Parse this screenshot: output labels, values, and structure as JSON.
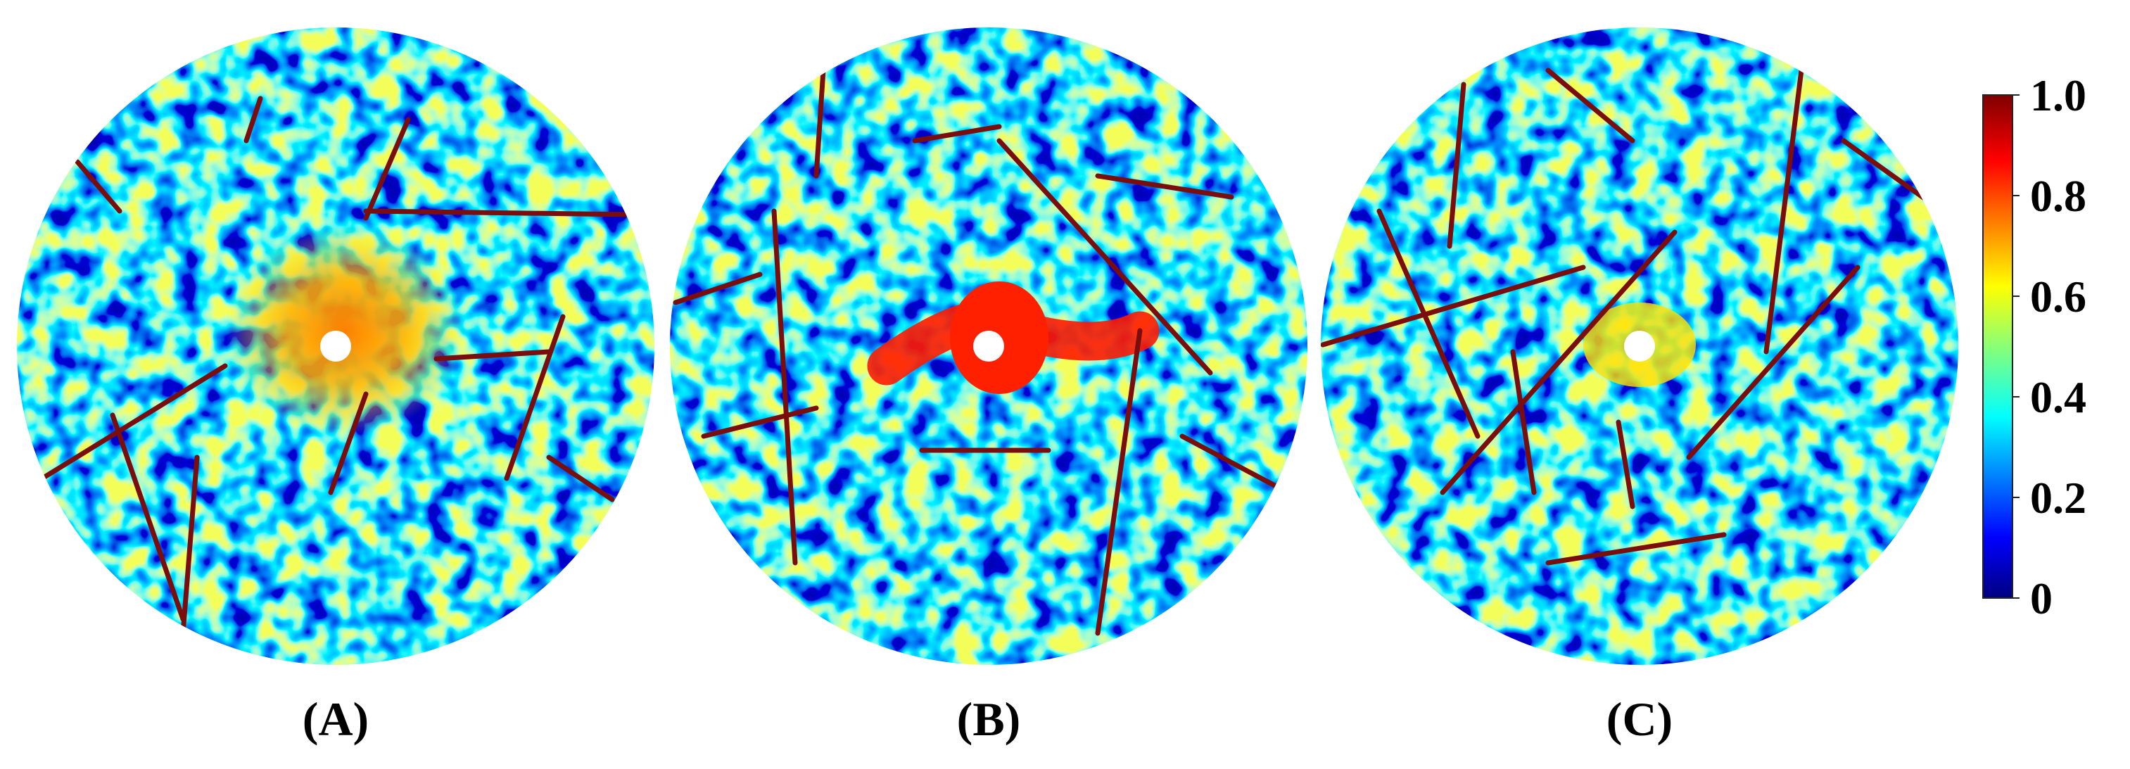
{
  "panels": [
    {
      "label": "(A)"
    },
    {
      "label": "(B)"
    },
    {
      "label": "(C)"
    }
  ],
  "colorbar": {
    "range": [
      0,
      1
    ],
    "ticks": [
      0,
      {
        "value": 0.2,
        "label": "0.2"
      },
      {
        "value": 0.4,
        "label": "0.4"
      },
      {
        "value": 0.6,
        "label": "0.6"
      },
      {
        "value": 0.8,
        "label": "0.8"
      },
      {
        "value": 1,
        "label": "1.0"
      }
    ]
  }
}
